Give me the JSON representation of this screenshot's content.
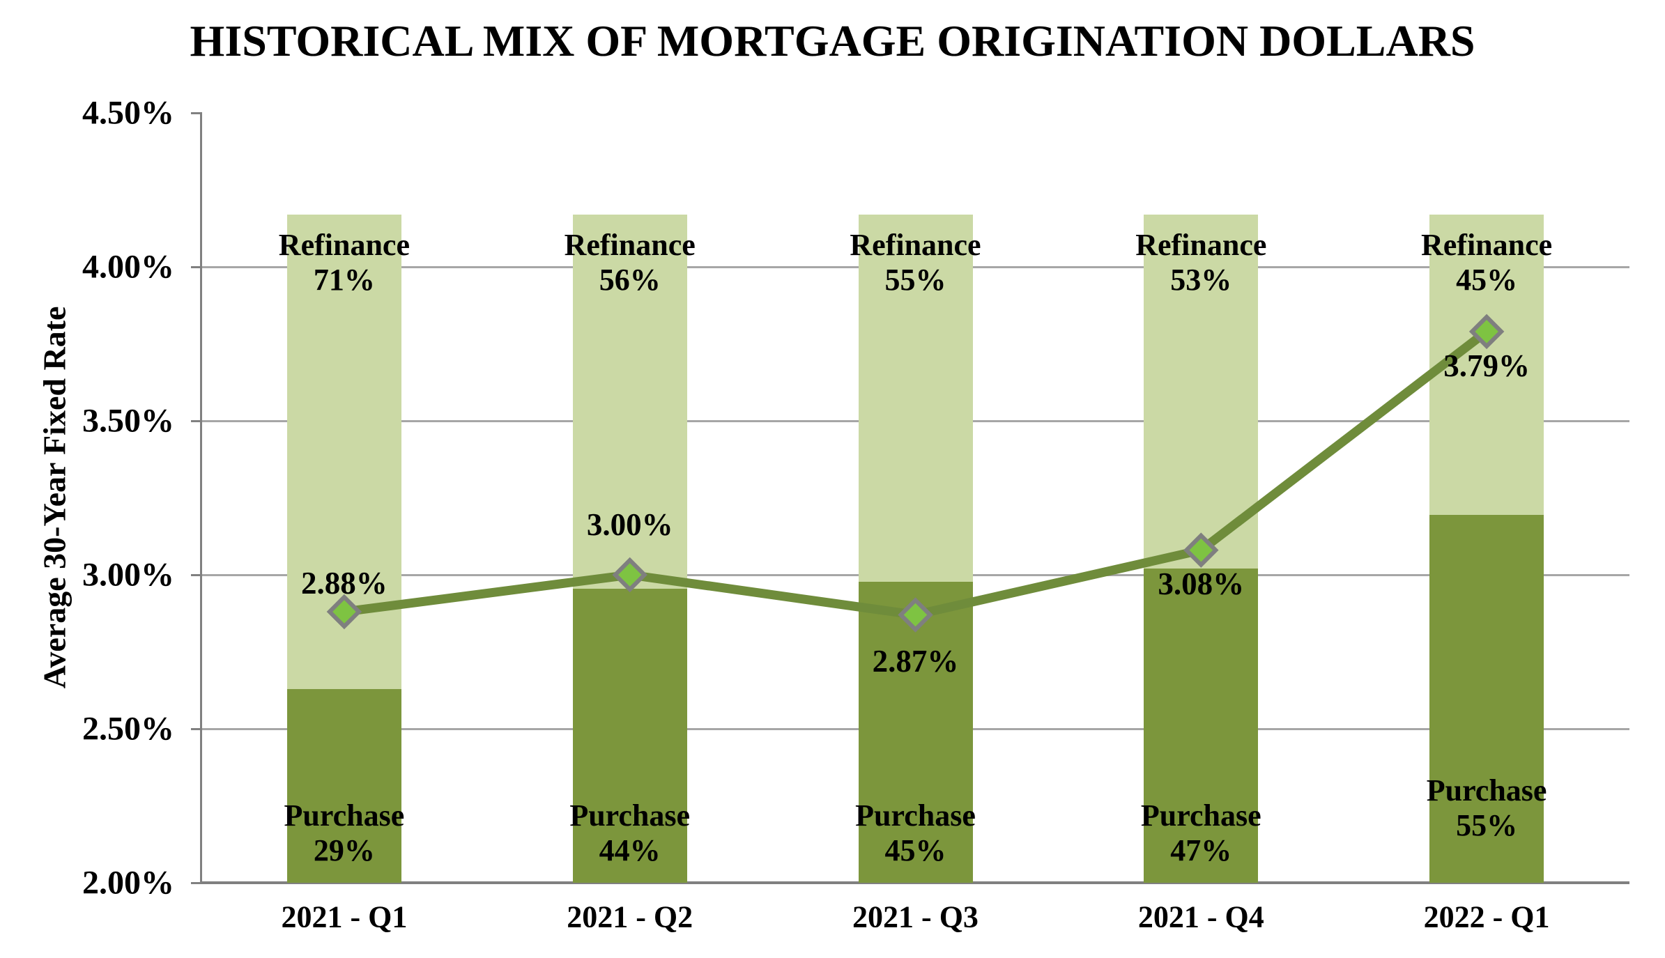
{
  "chart_data": {
    "type": "combo-stacked-bar-line",
    "title": "HISTORICAL MIX OF MORTGAGE ORIGINATION DOLLARS",
    "y_axis": {
      "label": "Average 30-Year Fixed Rate",
      "min": 2.0,
      "max": 4.5,
      "step": 0.5,
      "tick_labels": [
        "2.00%",
        "2.50%",
        "3.00%",
        "3.50%",
        "4.00%",
        "4.50%"
      ]
    },
    "categories": [
      "2021 - Q1",
      "2021 - Q2",
      "2021 - Q3",
      "2021 - Q4",
      "2022 - Q1"
    ],
    "bar_total_top_rate": 4.17,
    "series": [
      {
        "name": "Purchase",
        "type": "bar",
        "unit": "%",
        "values": [
          29,
          44,
          45,
          47,
          55
        ],
        "labels": [
          "29%",
          "44%",
          "45%",
          "47%",
          "55%"
        ],
        "color": "#7C963C"
      },
      {
        "name": "Refinance",
        "type": "bar",
        "unit": "%",
        "values": [
          71,
          56,
          55,
          53,
          45
        ],
        "labels": [
          "71%",
          "56%",
          "55%",
          "53%",
          "45%"
        ],
        "color": "#CBD9A5"
      },
      {
        "name": "Average 30-Year Fixed Rate",
        "type": "line",
        "unit": "%",
        "values": [
          2.88,
          3.0,
          2.87,
          3.08,
          3.79
        ],
        "point_labels": [
          "2.88%",
          "3.00%",
          "2.87%",
          "3.08%",
          "3.79%"
        ],
        "label_positions": [
          "above",
          "above",
          "below",
          "below",
          "below"
        ],
        "color": "#6F8C3B",
        "marker": {
          "shape": "diamond",
          "fill": "#7EC342",
          "border": "#7F7F7F"
        }
      }
    ],
    "colors": {
      "gridline": "#A6A6A6",
      "axis": "#808080",
      "text": "#000000",
      "background": "#FFFFFF"
    },
    "grid": "horizontal",
    "legend": "none"
  }
}
